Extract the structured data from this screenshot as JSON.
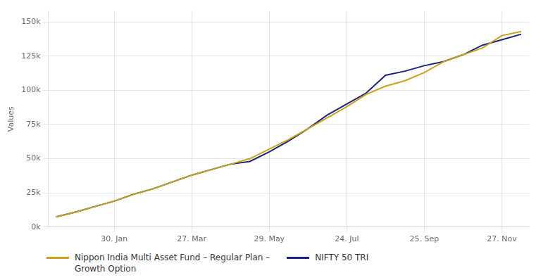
{
  "chart_data": {
    "type": "line",
    "x": [
      0.0,
      0.5,
      1.0,
      1.5,
      2.0,
      2.5,
      3.0,
      3.5,
      4.0,
      4.5,
      5.0,
      5.5,
      6.0,
      6.5,
      7.0,
      7.5,
      8.0,
      8.5,
      9.0,
      9.5,
      10.0,
      10.5,
      11.0,
      11.5,
      12.0
    ],
    "xlim": [
      -0.2,
      12.2
    ],
    "xticks": [
      {
        "value": 1.5,
        "label": "30. Jan"
      },
      {
        "value": 3.5,
        "label": "27. Mar"
      },
      {
        "value": 5.5,
        "label": "29. May"
      },
      {
        "value": 7.5,
        "label": "24. Jul"
      },
      {
        "value": 9.5,
        "label": "25. Sep"
      },
      {
        "value": 11.5,
        "label": "27. Nov"
      }
    ],
    "ylabel": "Values",
    "ylim": [
      0,
      158000
    ],
    "yticks": [
      {
        "value": 0,
        "label": "0k"
      },
      {
        "value": 25000,
        "label": "25k"
      },
      {
        "value": 50000,
        "label": "50k"
      },
      {
        "value": 75000,
        "label": "75k"
      },
      {
        "value": 100000,
        "label": "100k"
      },
      {
        "value": 125000,
        "label": "125k"
      },
      {
        "value": 150000,
        "label": "150k"
      }
    ],
    "grid": true,
    "legend": "bottom",
    "series": [
      {
        "name": "Nippon India Multi Asset Fund – Regular Plan –\nGrowth Option",
        "color": "#C8A21A",
        "values": [
          7500,
          11000,
          15000,
          19000,
          24000,
          28000,
          33000,
          38000,
          42000,
          46000,
          50000,
          57000,
          64000,
          72000,
          80000,
          88000,
          97000,
          103000,
          107000,
          113000,
          121000,
          126000,
          131000,
          140000,
          143000
        ]
      },
      {
        "name": "NIFTY 50 TRI",
        "color": "#1A237E",
        "values": [
          7500,
          11000,
          15000,
          19000,
          24000,
          28000,
          33000,
          38000,
          42000,
          46000,
          48000,
          55000,
          63000,
          72000,
          82000,
          90000,
          98000,
          111000,
          114000,
          118000,
          121000,
          126000,
          133000,
          137000,
          141000
        ]
      }
    ]
  }
}
